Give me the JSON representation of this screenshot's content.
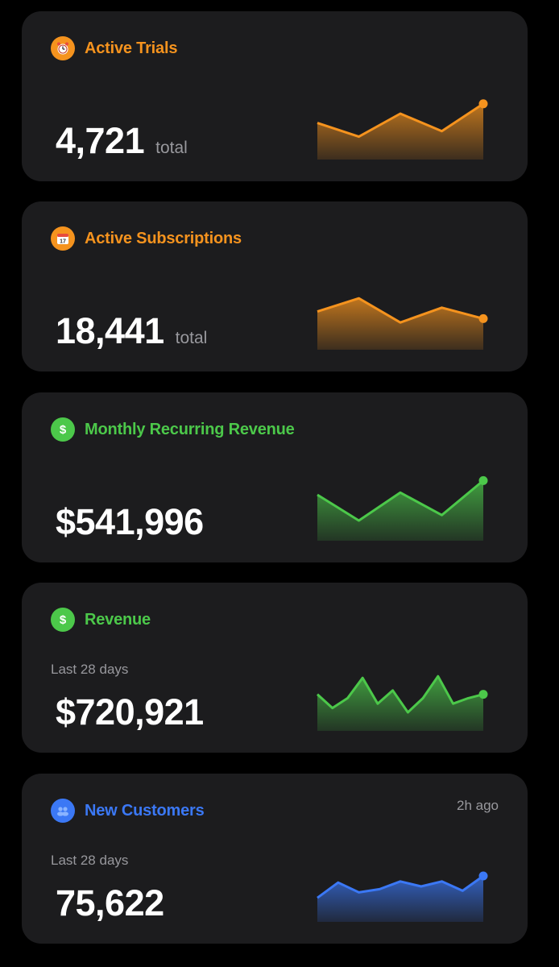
{
  "cards": [
    {
      "title": "Active Trials",
      "value": "4,721",
      "unit": "total",
      "subtitle": "",
      "timestamp": "",
      "icon": "alarm-clock-icon",
      "accent": "#f5931e",
      "sparkline": [
        0.55,
        0.3,
        0.72,
        0.4,
        0.9
      ]
    },
    {
      "title": "Active Subscriptions",
      "value": "18,441",
      "unit": "total",
      "subtitle": "",
      "timestamp": "",
      "icon": "calendar-icon",
      "accent": "#f5931e",
      "sparkline": [
        0.58,
        0.82,
        0.38,
        0.65,
        0.45
      ]
    },
    {
      "title": "Monthly Recurring Revenue",
      "value": "$541,996",
      "unit": "",
      "subtitle": "",
      "timestamp": "",
      "icon": "dollar-icon",
      "accent": "#4cc84a",
      "sparkline": [
        0.72,
        0.25,
        0.76,
        0.35,
        0.98
      ]
    },
    {
      "title": "Revenue",
      "value": "$720,921",
      "unit": "",
      "subtitle": "Last 28 days",
      "timestamp": "",
      "icon": "dollar-icon",
      "accent": "#4cc84a",
      "sparkline": [
        0.55,
        0.3,
        0.48,
        0.85,
        0.38,
        0.62,
        0.22,
        0.48,
        0.88,
        0.38,
        0.48,
        0.55
      ]
    },
    {
      "title": "New Customers",
      "value": "75,622",
      "unit": "",
      "subtitle": "Last 28 days",
      "timestamp": "2h ago",
      "icon": "users-icon",
      "accent": "#3b78f5",
      "sparkline": [
        0.32,
        0.6,
        0.42,
        0.48,
        0.62,
        0.53,
        0.62,
        0.45,
        0.72
      ]
    }
  ]
}
